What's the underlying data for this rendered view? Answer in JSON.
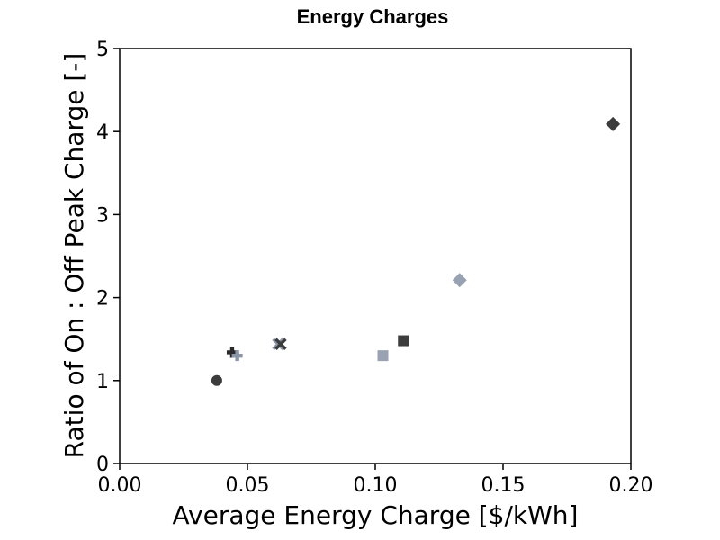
{
  "chart_data": {
    "type": "scatter",
    "title": "Energy Charges",
    "xlabel": "Average Energy Charge [$/kWh]",
    "ylabel": "Ratio of On : Off Peak Charge [-]",
    "xlim": [
      0.0,
      0.2
    ],
    "ylim": [
      0,
      5
    ],
    "xticks": [
      "0.00",
      "0.05",
      "0.10",
      "0.15",
      "0.20"
    ],
    "yticks": [
      "0",
      "1",
      "2",
      "3",
      "4",
      "5"
    ],
    "grid": false,
    "points": [
      {
        "x": 0.038,
        "y": 1.0,
        "marker": "circle",
        "color": "#3c3c3c"
      },
      {
        "x": 0.044,
        "y": 1.34,
        "marker": "plus",
        "color": "#2a2a2a"
      },
      {
        "x": 0.046,
        "y": 1.3,
        "marker": "plus",
        "color": "#8a96a8"
      },
      {
        "x": 0.062,
        "y": 1.44,
        "marker": "x",
        "color": "#8a96a8"
      },
      {
        "x": 0.063,
        "y": 1.44,
        "marker": "x",
        "color": "#3c3c3c"
      },
      {
        "x": 0.103,
        "y": 1.3,
        "marker": "square",
        "color": "#98a2b3"
      },
      {
        "x": 0.111,
        "y": 1.48,
        "marker": "square",
        "color": "#3c3c3c"
      },
      {
        "x": 0.133,
        "y": 2.21,
        "marker": "diamond",
        "color": "#98a2b3"
      },
      {
        "x": 0.193,
        "y": 4.09,
        "marker": "diamond",
        "color": "#3c3c3c"
      }
    ]
  }
}
